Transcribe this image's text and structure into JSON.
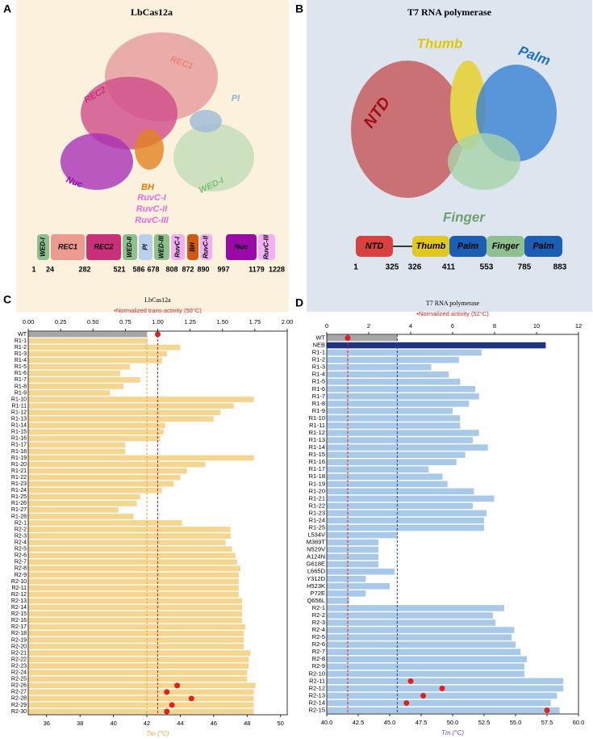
{
  "panel_a": {
    "letter": "A",
    "title": "LbCas12a",
    "structure_labels": [
      "REC1",
      "REC2",
      "PI",
      "Nuc",
      "BH",
      "RuvC-I",
      "RuvC-II",
      "RuvC-III",
      "WED-I"
    ],
    "domains": [
      "WED-I",
      "REC1",
      "REC2",
      "WED-II",
      "PI",
      "WED-III",
      "RuvC-I",
      "BH",
      "RuvC-II",
      "Nuc",
      "RuvC-III"
    ],
    "boundaries": [
      "1",
      "24",
      "282",
      "521",
      "586",
      "678",
      "808",
      "872",
      "890",
      "997",
      "1179",
      "1228"
    ]
  },
  "panel_b": {
    "letter": "B",
    "title": "T7 RNA polymerase",
    "structure_labels": [
      "NTD",
      "Thumb",
      "Palm",
      "Finger"
    ],
    "domains": [
      "NTD",
      "Thumb",
      "Palm",
      "Finger",
      "Palm"
    ],
    "boundaries": [
      "1",
      "325",
      "326",
      "411",
      "553",
      "785",
      "883"
    ]
  },
  "chart_data": [
    {
      "type": "bar",
      "panel_label": "C",
      "title": "LbCas12a",
      "xlabel": "Tm (°C)",
      "x2label": "•Normalized trans-activity (50°C)",
      "categories": [
        "WT",
        "R1-1",
        "R1-2",
        "R1-3",
        "R1-4",
        "R1-5",
        "R1-6",
        "R1-7",
        "R1-8",
        "R1-9",
        "R1-10",
        "R1-11",
        "R1-12",
        "R1-13",
        "R1-14",
        "R1-15",
        "R1-16",
        "R1-17",
        "R1-18",
        "R1-19",
        "R1-20",
        "R1-21",
        "R1-22",
        "R1-23",
        "R1-24",
        "R1-25",
        "R1-26",
        "R1-27",
        "R1-28",
        "R2-1",
        "R2-2",
        "R2-3",
        "R2-4",
        "R2-5",
        "R2-6",
        "R2-7",
        "R2-8",
        "R2-9",
        "R2-10",
        "R2-11",
        "R2-12",
        "R2-13",
        "R2-14",
        "R2-15",
        "R2-16",
        "R2-17",
        "R2-18",
        "R2-19",
        "R2-20",
        "R2-21",
        "R2-22",
        "R2-23",
        "R2-24",
        "R2-25",
        "R2-26",
        "R2-27",
        "R2-28",
        "R2-29",
        "R2-30"
      ],
      "values": [
        42.0,
        42.0,
        44.0,
        43.2,
        42.9,
        41.0,
        40.4,
        41.6,
        40.6,
        39.8,
        48.4,
        47.2,
        46.4,
        46.0,
        43.1,
        43.0,
        42.8,
        40.7,
        40.7,
        48.4,
        45.5,
        44.4,
        44.0,
        43.6,
        42.9,
        41.6,
        41.4,
        40.3,
        41.2,
        44.1,
        47.0,
        47.0,
        46.7,
        47.1,
        47.3,
        47.4,
        47.6,
        47.5,
        47.5,
        47.5,
        47.5,
        47.7,
        47.7,
        47.7,
        47.7,
        47.9,
        47.8,
        47.8,
        47.8,
        48.2,
        48.1,
        48.1,
        48.0,
        48.0,
        48.5,
        48.4,
        48.4,
        48.4,
        48.4
      ],
      "activity": [
        1.0,
        null,
        null,
        null,
        null,
        null,
        null,
        null,
        null,
        null,
        null,
        null,
        null,
        null,
        null,
        null,
        null,
        null,
        null,
        null,
        null,
        null,
        null,
        null,
        null,
        null,
        null,
        null,
        null,
        null,
        null,
        null,
        null,
        null,
        null,
        null,
        null,
        null,
        null,
        null,
        null,
        null,
        null,
        null,
        null,
        null,
        null,
        null,
        null,
        null,
        null,
        null,
        null,
        null,
        1.15,
        1.07,
        1.26,
        1.11,
        1.07
      ],
      "color": "#f5d690",
      "category_colors": {
        "WT": "#a6a6a6"
      },
      "activity_color": "#e02020",
      "ref_color": "#e8a840",
      "xlabel_color": "#e8a840",
      "x2label_color": "#e02020",
      "xlim": [
        34.9,
        50.4
      ],
      "xticks": [
        36,
        38,
        40,
        42,
        44,
        46,
        48,
        50
      ],
      "x2lim": [
        0,
        2
      ],
      "x2ticks": [
        {
          "value": 0,
          "label": "0.00"
        },
        {
          "value": 0.25,
          "label": "0.25"
        },
        {
          "value": 0.5,
          "label": "0.50"
        },
        {
          "value": 0.75,
          "label": "0.75"
        },
        {
          "value": 1,
          "label": "1.00"
        },
        {
          "value": 1.25,
          "label": "1.25"
        },
        {
          "value": 1.5,
          "label": "1.50"
        },
        {
          "value": 1.75,
          "label": "1.75"
        },
        {
          "value": 2,
          "label": "2.00"
        }
      ]
    },
    {
      "type": "bar",
      "panel_label": "D",
      "title": "T7 RNA polymerase",
      "xlabel": "Tm (°C)",
      "x2label": "•Normalized activity (52°C)",
      "categories": [
        "WT",
        "NEB",
        "R1-1",
        "R1-2",
        "R1-3",
        "R1-4",
        "R1-5",
        "R1-6",
        "R1-7",
        "R1-8",
        "R1-9",
        "R1-10",
        "R1-11",
        "R1-12",
        "R1-13",
        "R1-14",
        "R1-15",
        "R1-16",
        "R1-17",
        "R1-18",
        "R1-19",
        "R1-20",
        "R1-21",
        "R1-22",
        "R1-23",
        "R1-24",
        "R1-25",
        "L534V",
        "M369T",
        "N529V",
        "A124N",
        "G618E",
        "L665D",
        "Y312D",
        "H523K",
        "P72E",
        "Q656L",
        "R2-1",
        "R2-2",
        "R2-3",
        "R2-4",
        "R2-5",
        "R2-6",
        "R2-7",
        "R2-8",
        "R2-9",
        "R2-10",
        "R2-11",
        "R2-12",
        "R2-13",
        "R2-14",
        "R2-15"
      ],
      "values": [
        45.6,
        57.4,
        52.3,
        50.5,
        48.3,
        49.7,
        50.6,
        51.8,
        52.1,
        51.3,
        50.0,
        50.6,
        50.6,
        52.1,
        51.6,
        52.8,
        51.0,
        50.3,
        48.1,
        49.2,
        49.6,
        51.7,
        53.3,
        51.6,
        52.7,
        52.5,
        52.5,
        45.6,
        44.1,
        44.1,
        44.1,
        44.1,
        45.4,
        43.1,
        45.0,
        43.1,
        41.8,
        54.1,
        53.2,
        53.4,
        54.9,
        54.7,
        55.0,
        55.4,
        55.9,
        55.7,
        55.7,
        58.8,
        58.8,
        58.3,
        57.8,
        58.5
      ],
      "activity": [
        1.0,
        null,
        null,
        null,
        null,
        null,
        null,
        null,
        null,
        null,
        null,
        null,
        null,
        null,
        null,
        null,
        null,
        null,
        null,
        null,
        null,
        null,
        null,
        null,
        null,
        null,
        null,
        null,
        null,
        null,
        null,
        null,
        null,
        null,
        null,
        null,
        null,
        null,
        null,
        null,
        null,
        null,
        null,
        null,
        null,
        null,
        null,
        4.0,
        5.5,
        4.6,
        3.8,
        10.5
      ],
      "color": "#a9c9e8",
      "category_colors": {
        "WT": "#a6a6a6",
        "NEB": "#1f3580"
      },
      "activity_color": "#e02020",
      "ref_color": "#2a3fa0",
      "xlabel_color": "#6a4bc0",
      "x2label_color": "#e02020",
      "xlim": [
        40,
        60
      ],
      "xticks": [
        {
          "value": 40,
          "label": "40.0"
        },
        42.5,
        {
          "value": 45,
          "label": "45.0"
        },
        47.5,
        {
          "value": 50,
          "label": "50.0"
        },
        52.5,
        {
          "value": 55,
          "label": "55.0"
        },
        57.5,
        {
          "value": 60,
          "label": "60.0"
        }
      ],
      "x2lim": [
        0,
        12
      ],
      "x2ticks": [
        0,
        2,
        4,
        6,
        8,
        10,
        12
      ]
    }
  ]
}
